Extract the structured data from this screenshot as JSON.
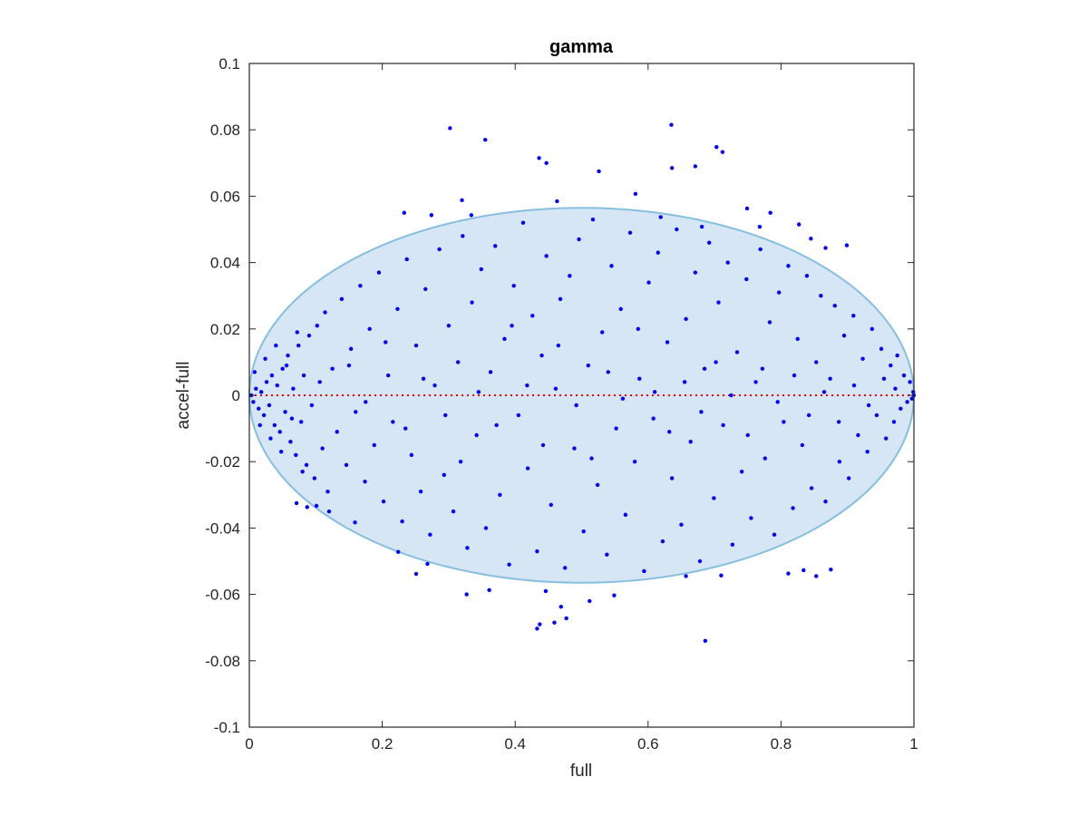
{
  "chart_data": {
    "type": "scatter",
    "title": "gamma",
    "xlabel": "full",
    "ylabel": "accel-full",
    "xlim": [
      0,
      1
    ],
    "ylim": [
      -0.1,
      0.1
    ],
    "xticks": [
      0,
      0.2,
      0.4,
      0.6,
      0.8,
      1
    ],
    "xtick_labels": [
      "0",
      "0.2",
      "0.4",
      "0.6",
      "0.8",
      "1"
    ],
    "yticks": [
      -0.1,
      -0.08,
      -0.06,
      -0.04,
      -0.02,
      0,
      0.02,
      0.04,
      0.06,
      0.08,
      0.1
    ],
    "ytick_labels": [
      "-0.1",
      "-0.08",
      "-0.06",
      "-0.04",
      "-0.02",
      "0",
      "0.02",
      "0.04",
      "0.06",
      "0.08",
      "0.1"
    ],
    "grid": false,
    "box": true,
    "ellipse": {
      "cx": 0.5,
      "cy": 0,
      "rx": 0.5,
      "ry": 0.0565,
      "fill": "#d6e6f4",
      "stroke": "#86bfe0"
    },
    "reference_line": {
      "y": 0,
      "style": "dotted",
      "color": "#ff0000"
    },
    "series": [
      {
        "marker_color": "#0000ff",
        "points": [
          [
            0.302,
            0.0805
          ],
          [
            0.355,
            0.077
          ],
          [
            0.436,
            0.0715
          ],
          [
            0.447,
            0.07
          ],
          [
            0.526,
            0.0675
          ],
          [
            0.635,
            0.0815
          ],
          [
            0.636,
            0.0685
          ],
          [
            0.671,
            0.069
          ],
          [
            0.703,
            0.0748
          ],
          [
            0.712,
            0.0733
          ],
          [
            0.581,
            0.0607
          ],
          [
            0.32,
            0.0588
          ],
          [
            0.463,
            0.0585
          ],
          [
            0.233,
            0.055
          ],
          [
            0.274,
            0.0543
          ],
          [
            0.334,
            0.0543
          ],
          [
            0.749,
            0.0563
          ],
          [
            0.768,
            0.0508
          ],
          [
            0.784,
            0.055
          ],
          [
            0.827,
            0.0515
          ],
          [
            0.619,
            0.0537
          ],
          [
            0.681,
            0.0508
          ],
          [
            0.845,
            0.0472
          ],
          [
            0.867,
            0.0444
          ],
          [
            0.899,
            0.0452
          ],
          [
            0.327,
            -0.06
          ],
          [
            0.361,
            -0.0587
          ],
          [
            0.446,
            -0.059
          ],
          [
            0.459,
            -0.0685
          ],
          [
            0.469,
            -0.0637
          ],
          [
            0.477,
            -0.0672
          ],
          [
            0.512,
            -0.062
          ],
          [
            0.549,
            -0.0603
          ],
          [
            0.433,
            -0.0703
          ],
          [
            0.437,
            -0.069
          ],
          [
            0.686,
            -0.074
          ],
          [
            0.657,
            -0.0545
          ],
          [
            0.71,
            -0.0543
          ],
          [
            0.811,
            -0.0537
          ],
          [
            0.834,
            -0.0527
          ],
          [
            0.853,
            -0.0545
          ],
          [
            0.875,
            -0.0525
          ],
          [
            0.224,
            -0.0472
          ],
          [
            0.251,
            -0.0538
          ],
          [
            0.268,
            -0.0508
          ],
          [
            0.087,
            -0.0337
          ],
          [
            0.101,
            -0.0333
          ],
          [
            0.12,
            -0.035
          ],
          [
            0.071,
            -0.0325
          ],
          [
            0.159,
            -0.0383
          ],
          [
            0.003,
            0.0
          ],
          [
            0.006,
            -0.002
          ],
          [
            0.01,
            0.002
          ],
          [
            0.014,
            -0.004
          ],
          [
            0.018,
            0.001
          ],
          [
            0.022,
            -0.006
          ],
          [
            0.026,
            0.004
          ],
          [
            0.03,
            -0.003
          ],
          [
            0.034,
            0.006
          ],
          [
            0.038,
            -0.009
          ],
          [
            0.042,
            0.003
          ],
          [
            0.046,
            -0.011
          ],
          [
            0.05,
            0.008
          ],
          [
            0.054,
            -0.005
          ],
          [
            0.058,
            0.012
          ],
          [
            0.062,
            -0.014
          ],
          [
            0.066,
            0.002
          ],
          [
            0.07,
            -0.018
          ],
          [
            0.074,
            0.015
          ],
          [
            0.078,
            -0.008
          ],
          [
            0.082,
            0.006
          ],
          [
            0.086,
            -0.021
          ],
          [
            0.09,
            0.018
          ],
          [
            0.094,
            -0.003
          ],
          [
            0.098,
            -0.025
          ],
          [
            0.102,
            0.021
          ],
          [
            0.106,
            0.004
          ],
          [
            0.11,
            -0.016
          ],
          [
            0.114,
            0.025
          ],
          [
            0.118,
            -0.029
          ],
          [
            0.008,
            0.007
          ],
          [
            0.016,
            -0.009
          ],
          [
            0.024,
            0.011
          ],
          [
            0.032,
            -0.013
          ],
          [
            0.04,
            0.015
          ],
          [
            0.048,
            -0.017
          ],
          [
            0.056,
            0.009
          ],
          [
            0.064,
            -0.007
          ],
          [
            0.072,
            0.019
          ],
          [
            0.08,
            -0.023
          ],
          [
            0.125,
            0.008
          ],
          [
            0.132,
            -0.011
          ],
          [
            0.139,
            0.029
          ],
          [
            0.146,
            -0.021
          ],
          [
            0.153,
            0.014
          ],
          [
            0.16,
            -0.005
          ],
          [
            0.167,
            0.033
          ],
          [
            0.174,
            -0.026
          ],
          [
            0.181,
            0.02
          ],
          [
            0.188,
            -0.015
          ],
          [
            0.195,
            0.037
          ],
          [
            0.202,
            -0.032
          ],
          [
            0.209,
            0.006
          ],
          [
            0.216,
            -0.008
          ],
          [
            0.223,
            0.026
          ],
          [
            0.23,
            -0.038
          ],
          [
            0.237,
            0.041
          ],
          [
            0.244,
            -0.018
          ],
          [
            0.251,
            0.015
          ],
          [
            0.258,
            -0.029
          ],
          [
            0.265,
            0.032
          ],
          [
            0.272,
            -0.042
          ],
          [
            0.279,
            0.003
          ],
          [
            0.286,
            0.044
          ],
          [
            0.293,
            -0.024
          ],
          [
            0.3,
            0.021
          ],
          [
            0.307,
            -0.035
          ],
          [
            0.314,
            0.01
          ],
          [
            0.321,
            0.048
          ],
          [
            0.328,
            -0.046
          ],
          [
            0.335,
            0.028
          ],
          [
            0.342,
            -0.012
          ],
          [
            0.349,
            0.038
          ],
          [
            0.356,
            -0.04
          ],
          [
            0.363,
            0.007
          ],
          [
            0.37,
            0.045
          ],
          [
            0.377,
            -0.03
          ],
          [
            0.384,
            0.017
          ],
          [
            0.391,
            -0.051
          ],
          [
            0.398,
            0.033
          ],
          [
            0.405,
            -0.006
          ],
          [
            0.412,
            0.052
          ],
          [
            0.419,
            -0.022
          ],
          [
            0.426,
            0.024
          ],
          [
            0.433,
            -0.047
          ],
          [
            0.44,
            0.012
          ],
          [
            0.447,
            0.042
          ],
          [
            0.454,
            -0.033
          ],
          [
            0.461,
            0.002
          ],
          [
            0.468,
            0.029
          ],
          [
            0.475,
            -0.052
          ],
          [
            0.482,
            0.036
          ],
          [
            0.489,
            -0.016
          ],
          [
            0.496,
            0.047
          ],
          [
            0.503,
            -0.041
          ],
          [
            0.51,
            0.009
          ],
          [
            0.517,
            0.053
          ],
          [
            0.524,
            -0.027
          ],
          [
            0.531,
            0.019
          ],
          [
            0.538,
            -0.048
          ],
          [
            0.545,
            0.039
          ],
          [
            0.552,
            -0.01
          ],
          [
            0.559,
            0.026
          ],
          [
            0.566,
            -0.036
          ],
          [
            0.573,
            0.049
          ],
          [
            0.58,
            -0.02
          ],
          [
            0.587,
            0.005
          ],
          [
            0.594,
            -0.053
          ],
          [
            0.601,
            0.034
          ],
          [
            0.608,
            -0.007
          ],
          [
            0.615,
            0.043
          ],
          [
            0.622,
            -0.044
          ],
          [
            0.629,
            0.016
          ],
          [
            0.636,
            -0.025
          ],
          [
            0.643,
            0.05
          ],
          [
            0.65,
            -0.039
          ],
          [
            0.657,
            0.023
          ],
          [
            0.664,
            -0.014
          ],
          [
            0.671,
            0.037
          ],
          [
            0.678,
            -0.05
          ],
          [
            0.685,
            0.008
          ],
          [
            0.692,
            0.046
          ],
          [
            0.699,
            -0.031
          ],
          [
            0.706,
            0.028
          ],
          [
            0.713,
            -0.009
          ],
          [
            0.72,
            0.04
          ],
          [
            0.727,
            -0.045
          ],
          [
            0.734,
            0.013
          ],
          [
            0.741,
            -0.023
          ],
          [
            0.748,
            0.035
          ],
          [
            0.755,
            -0.037
          ],
          [
            0.762,
            0.004
          ],
          [
            0.769,
            0.044
          ],
          [
            0.776,
            -0.019
          ],
          [
            0.783,
            0.022
          ],
          [
            0.79,
            -0.042
          ],
          [
            0.797,
            0.031
          ],
          [
            0.804,
            -0.008
          ],
          [
            0.811,
            0.039
          ],
          [
            0.818,
            -0.034
          ],
          [
            0.825,
            0.017
          ],
          [
            0.832,
            -0.015
          ],
          [
            0.839,
            0.036
          ],
          [
            0.846,
            -0.028
          ],
          [
            0.853,
            0.01
          ],
          [
            0.86,
            0.03
          ],
          [
            0.867,
            -0.032
          ],
          [
            0.874,
            0.005
          ],
          [
            0.881,
            0.027
          ],
          [
            0.888,
            -0.02
          ],
          [
            0.895,
            0.018
          ],
          [
            0.902,
            -0.025
          ],
          [
            0.909,
            0.024
          ],
          [
            0.916,
            -0.012
          ],
          [
            0.923,
            0.011
          ],
          [
            0.93,
            -0.017
          ],
          [
            0.937,
            0.02
          ],
          [
            0.944,
            -0.006
          ],
          [
            0.951,
            0.014
          ],
          [
            0.958,
            -0.013
          ],
          [
            0.965,
            0.009
          ],
          [
            0.97,
            -0.008
          ],
          [
            0.975,
            0.012
          ],
          [
            0.98,
            -0.004
          ],
          [
            0.985,
            0.006
          ],
          [
            0.99,
            -0.002
          ],
          [
            0.994,
            0.004
          ],
          [
            0.997,
            -0.001
          ],
          [
            0.999,
            0.001
          ],
          [
            1.0,
            0.0
          ],
          [
            0.15,
            0.009
          ],
          [
            0.175,
            -0.002
          ],
          [
            0.205,
            0.016
          ],
          [
            0.235,
            -0.01
          ],
          [
            0.262,
            0.005
          ],
          [
            0.295,
            -0.006
          ],
          [
            0.318,
            -0.02
          ],
          [
            0.345,
            0.001
          ],
          [
            0.372,
            -0.009
          ],
          [
            0.395,
            0.021
          ],
          [
            0.418,
            0.003
          ],
          [
            0.442,
            -0.015
          ],
          [
            0.465,
            0.015
          ],
          [
            0.492,
            -0.003
          ],
          [
            0.515,
            -0.019
          ],
          [
            0.54,
            0.007
          ],
          [
            0.562,
            -0.001
          ],
          [
            0.585,
            0.02
          ],
          [
            0.61,
            0.001
          ],
          [
            0.632,
            -0.011
          ],
          [
            0.655,
            0.004
          ],
          [
            0.68,
            -0.005
          ],
          [
            0.702,
            0.01
          ],
          [
            0.725,
            0.0
          ],
          [
            0.75,
            -0.012
          ],
          [
            0.772,
            0.008
          ],
          [
            0.795,
            -0.002
          ],
          [
            0.82,
            0.006
          ],
          [
            0.842,
            -0.006
          ],
          [
            0.865,
            0.001
          ],
          [
            0.887,
            -0.008
          ],
          [
            0.91,
            0.003
          ],
          [
            0.932,
            -0.003
          ],
          [
            0.955,
            0.005
          ],
          [
            0.972,
            0.002
          ]
        ]
      }
    ]
  }
}
